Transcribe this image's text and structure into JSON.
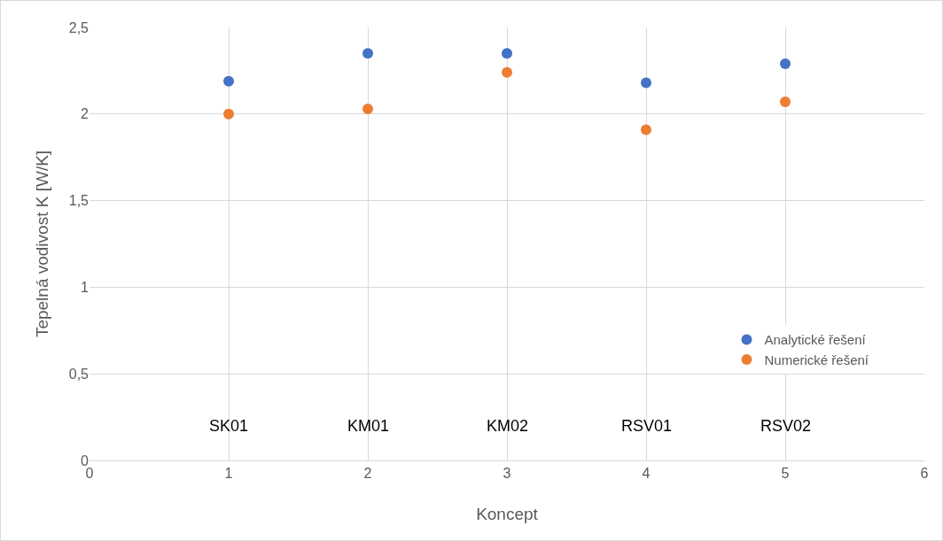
{
  "chart_data": {
    "type": "scatter",
    "xlabel": "Koncept",
    "ylabel": "Tepelná vodivost K [W/K]",
    "x": [
      1,
      2,
      3,
      4,
      5
    ],
    "series": [
      {
        "name": "Analytické řešení",
        "color": "#4472c4",
        "values": [
          2.19,
          2.35,
          2.35,
          2.18,
          2.29
        ]
      },
      {
        "name": "Numerické řešení",
        "color": "#ed7d31",
        "values": [
          2.0,
          2.03,
          2.24,
          1.91,
          2.07
        ]
      }
    ],
    "xlim": [
      0,
      6
    ],
    "xticks": [
      0,
      1,
      2,
      3,
      4,
      5,
      6
    ],
    "ylim": [
      0,
      2.5
    ],
    "yticks": [
      0,
      {
        "value": 0.5,
        "label": "0,5"
      },
      1,
      {
        "value": 1.5,
        "label": "1,5"
      },
      2,
      {
        "value": 2.5,
        "label": "2,5"
      }
    ],
    "annotations": [
      "SK01",
      "KM01",
      "KM02",
      "RSV01",
      "RSV02"
    ],
    "grid": true,
    "legend": "bottom right",
    "marker": "circle"
  }
}
